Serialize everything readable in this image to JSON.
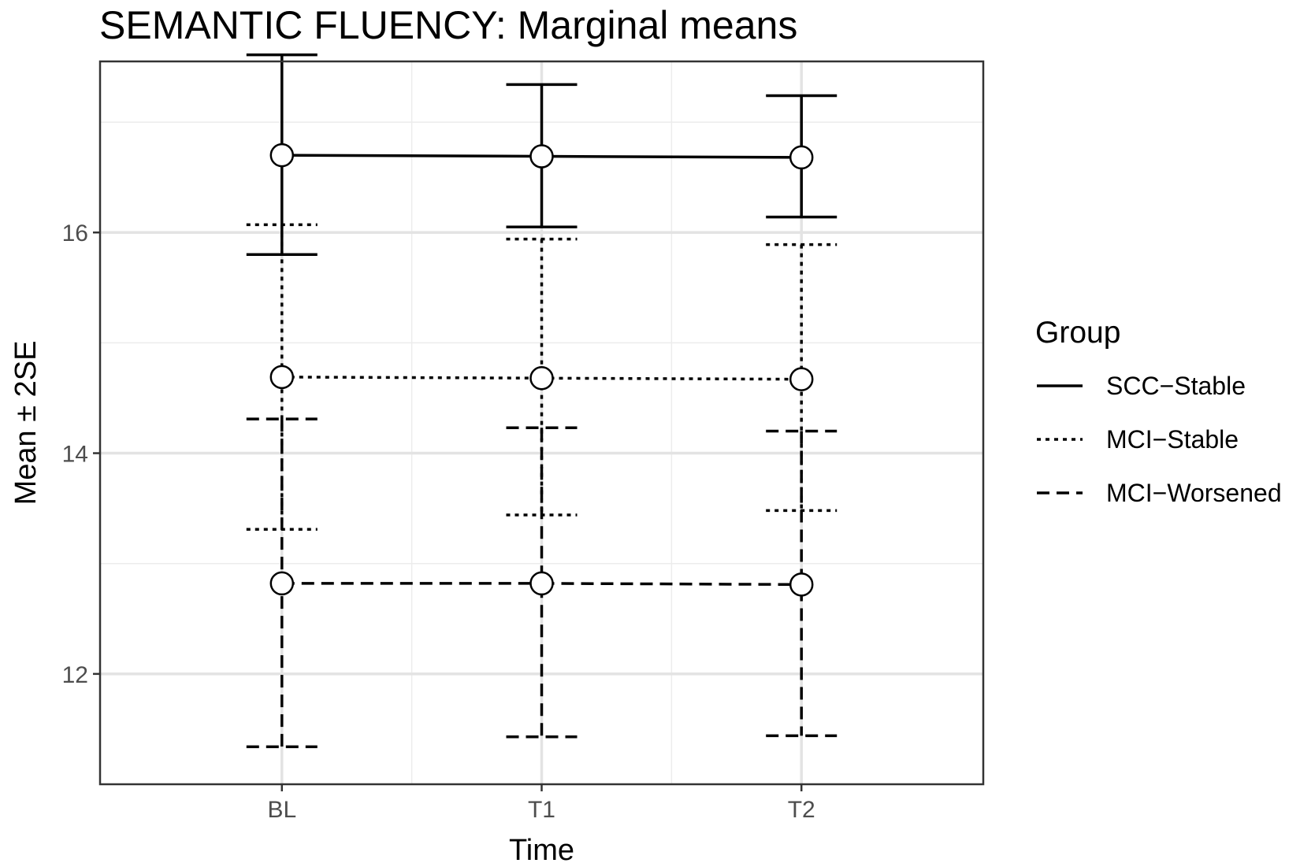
{
  "chart_data": {
    "type": "line",
    "title": "SEMANTIC FLUENCY: Marginal means",
    "xlabel": "Time",
    "ylabel": "Mean ± 2SE",
    "categories": [
      "BL",
      "T1",
      "T2"
    ],
    "y_ticks": [
      12,
      14,
      16
    ],
    "ylim": [
      11.0,
      17.55
    ],
    "grid": true,
    "legend": {
      "title": "Group",
      "position": "right"
    },
    "series": [
      {
        "name": "SCC−Stable",
        "line_style": "solid",
        "values": [
          16.7,
          16.69,
          16.68
        ],
        "lower": [
          15.8,
          16.05,
          16.14
        ],
        "upper": [
          17.61,
          17.34,
          17.24
        ]
      },
      {
        "name": "MCI−Stable",
        "line_style": "dotted",
        "values": [
          14.69,
          14.68,
          14.67
        ],
        "lower": [
          13.31,
          13.44,
          13.48
        ],
        "upper": [
          16.07,
          15.94,
          15.89
        ]
      },
      {
        "name": "MCI−Worsened",
        "line_style": "dashed",
        "values": [
          12.82,
          12.82,
          12.81
        ],
        "lower": [
          11.34,
          11.43,
          11.44
        ],
        "upper": [
          14.31,
          14.23,
          14.2
        ]
      }
    ]
  }
}
